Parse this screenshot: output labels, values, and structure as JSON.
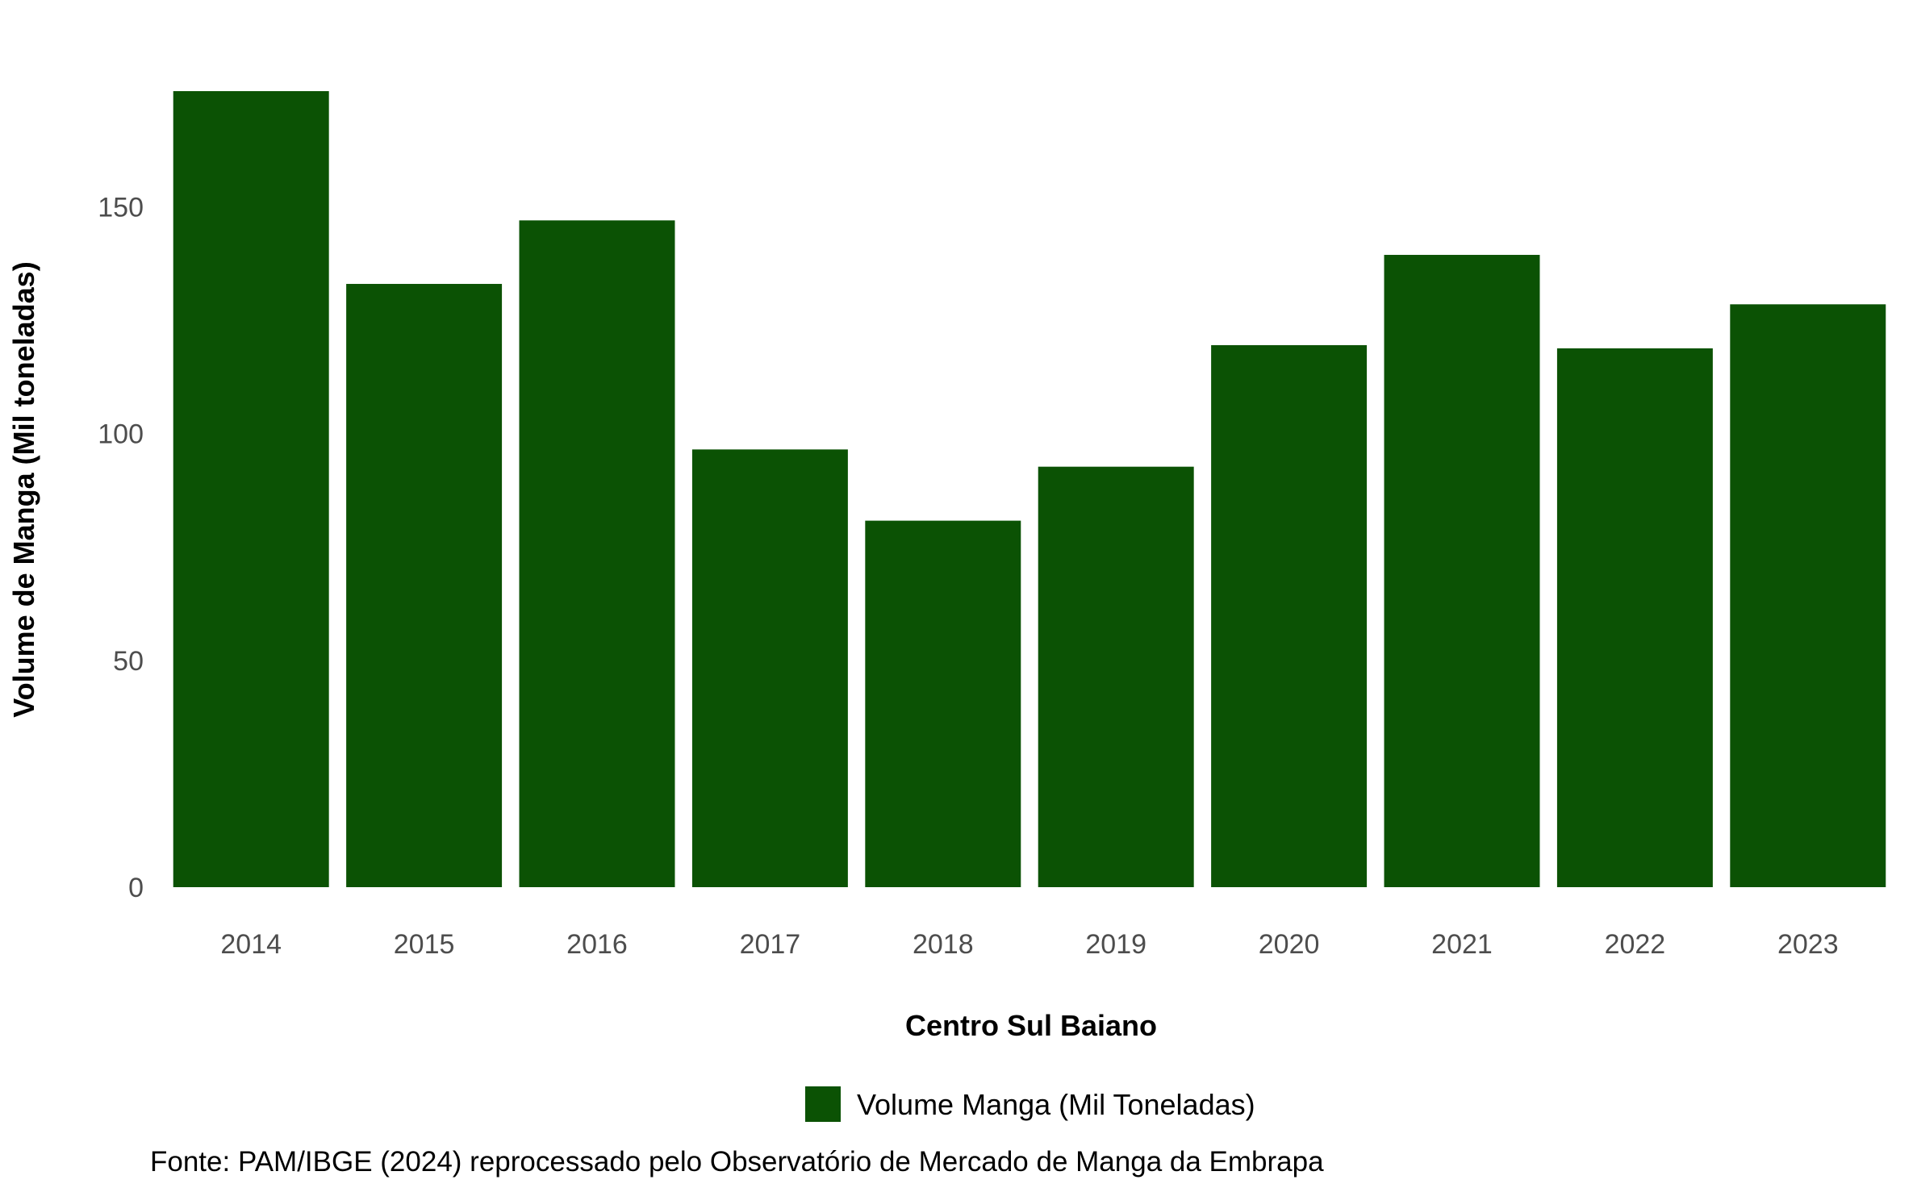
{
  "chart_data": {
    "type": "bar",
    "categories": [
      "2014",
      "2015",
      "2016",
      "2017",
      "2018",
      "2019",
      "2020",
      "2021",
      "2022",
      "2023"
    ],
    "series": [
      {
        "name": "Volume Manga (Mil Toneladas)",
        "values": [
          175.5,
          133,
          147,
          96.5,
          80.8,
          92.7,
          119.5,
          139.4,
          118.8,
          128.5
        ],
        "color": "#0b5204"
      }
    ],
    "title": "",
    "xlabel": "Centro Sul Baiano",
    "ylabel": "Volume de Manga (Mil toneladas)",
    "ylim": [
      0,
      175.5
    ],
    "yticks": [
      0,
      50,
      100,
      150
    ],
    "ytick_labels": [
      "0",
      "50",
      "100",
      "150"
    ],
    "grid": false,
    "legend": {
      "position": "bottom",
      "entries": [
        "Volume Manga (Mil Toneladas)"
      ]
    },
    "caption": "Fonte: PAM/IBGE (2024) reprocessado pelo Observatório de Mercado de Manga da Embrapa"
  }
}
